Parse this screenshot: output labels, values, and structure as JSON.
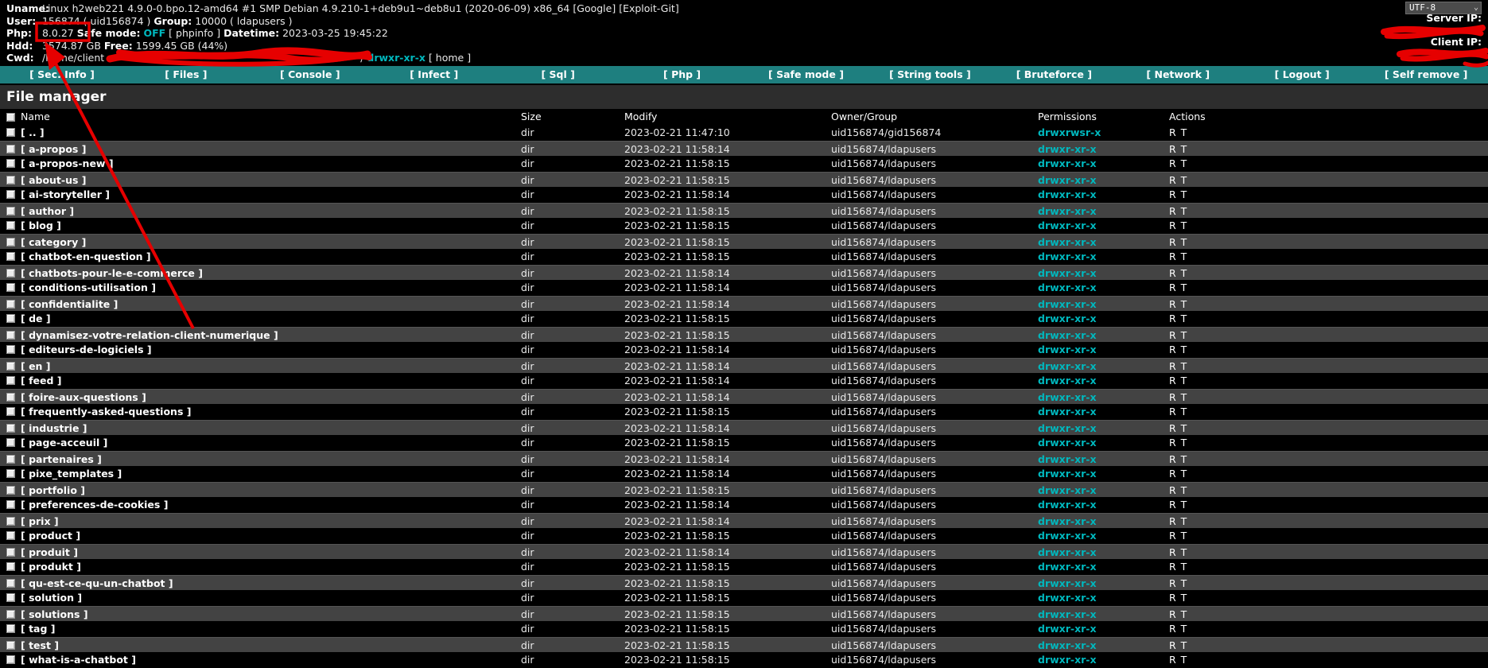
{
  "header": {
    "uname_label": "Uname:",
    "uname_value": "Linux h2web221 4.9.0-0.bpo.12-amd64 #1 SMP Debian 4.9.210-1+deb9u1~deb8u1 (2020-06-09) x86_64",
    "google_link": "[Google]",
    "exploit_link": "[Exploit-Git]",
    "user_label": "User:",
    "user_value": "156874 ( uid156874 )",
    "group_label": "Group:",
    "group_value": "10000 ( ldapusers )",
    "php_label": "Php:",
    "php_version": "8.0.27",
    "safe_mode_label": "Safe mode:",
    "safe_mode_value": "OFF",
    "phpinfo_link": "[ phpinfo ]",
    "datetime_label": "Datetime:",
    "datetime_value": "2023-03-25 19:45:22",
    "hdd_label": "Hdd:",
    "hdd_value": "3574.87 GB",
    "free_label": "Free:",
    "free_value": "1599.45 GB (44%)",
    "cwd_label": "Cwd:",
    "cwd_prefix": "/home/client",
    "cwd_suffix": "/",
    "cwd_perm": "drwxr-xr-x",
    "home_link": "[ home ]",
    "charset_value": "UTF-8",
    "server_ip_label": "Server IP:",
    "client_ip_label": "Client IP:"
  },
  "navbar": {
    "items": [
      "[ Sec. Info ]",
      "[ Files ]",
      "[ Console ]",
      "[ Infect ]",
      "[ Sql ]",
      "[ Php ]",
      "[ Safe mode ]",
      "[ String tools ]",
      "[ Bruteforce ]",
      "[ Network ]",
      "[ Logout ]",
      "[ Self remove ]"
    ]
  },
  "file_manager": {
    "title": "File manager",
    "columns": [
      "Name",
      "Size",
      "Modify",
      "Owner/Group",
      "Permissions",
      "Actions"
    ],
    "rows": [
      {
        "name": "[ .. ]",
        "size": "dir",
        "modify": "2023-02-21 11:47:10",
        "owner": "uid156874/gid156874",
        "perms": "drwxrwsr-x",
        "actions": "R T"
      },
      {
        "name": "[ a-propos ]",
        "size": "dir",
        "modify": "2023-02-21 11:58:14",
        "owner": "uid156874/ldapusers",
        "perms": "drwxr-xr-x",
        "actions": "R T"
      },
      {
        "name": "[ a-propos-new ]",
        "size": "dir",
        "modify": "2023-02-21 11:58:15",
        "owner": "uid156874/ldapusers",
        "perms": "drwxr-xr-x",
        "actions": "R T"
      },
      {
        "name": "[ about-us ]",
        "size": "dir",
        "modify": "2023-02-21 11:58:15",
        "owner": "uid156874/ldapusers",
        "perms": "drwxr-xr-x",
        "actions": "R T"
      },
      {
        "name": "[ ai-storyteller ]",
        "size": "dir",
        "modify": "2023-02-21 11:58:14",
        "owner": "uid156874/ldapusers",
        "perms": "drwxr-xr-x",
        "actions": "R T"
      },
      {
        "name": "[ author ]",
        "size": "dir",
        "modify": "2023-02-21 11:58:15",
        "owner": "uid156874/ldapusers",
        "perms": "drwxr-xr-x",
        "actions": "R T"
      },
      {
        "name": "[ blog ]",
        "size": "dir",
        "modify": "2023-02-21 11:58:15",
        "owner": "uid156874/ldapusers",
        "perms": "drwxr-xr-x",
        "actions": "R T"
      },
      {
        "name": "[ category ]",
        "size": "dir",
        "modify": "2023-02-21 11:58:15",
        "owner": "uid156874/ldapusers",
        "perms": "drwxr-xr-x",
        "actions": "R T"
      },
      {
        "name": "[ chatbot-en-question ]",
        "size": "dir",
        "modify": "2023-02-21 11:58:15",
        "owner": "uid156874/ldapusers",
        "perms": "drwxr-xr-x",
        "actions": "R T"
      },
      {
        "name": "[ chatbots-pour-le-e-commerce ]",
        "size": "dir",
        "modify": "2023-02-21 11:58:14",
        "owner": "uid156874/ldapusers",
        "perms": "drwxr-xr-x",
        "actions": "R T"
      },
      {
        "name": "[ conditions-utilisation ]",
        "size": "dir",
        "modify": "2023-02-21 11:58:14",
        "owner": "uid156874/ldapusers",
        "perms": "drwxr-xr-x",
        "actions": "R T"
      },
      {
        "name": "[ confidentialite ]",
        "size": "dir",
        "modify": "2023-02-21 11:58:14",
        "owner": "uid156874/ldapusers",
        "perms": "drwxr-xr-x",
        "actions": "R T"
      },
      {
        "name": "[ de ]",
        "size": "dir",
        "modify": "2023-02-21 11:58:15",
        "owner": "uid156874/ldapusers",
        "perms": "drwxr-xr-x",
        "actions": "R T"
      },
      {
        "name": "[ dynamisez-votre-relation-client-numerique ]",
        "size": "dir",
        "modify": "2023-02-21 11:58:15",
        "owner": "uid156874/ldapusers",
        "perms": "drwxr-xr-x",
        "actions": "R T"
      },
      {
        "name": "[ editeurs-de-logiciels ]",
        "size": "dir",
        "modify": "2023-02-21 11:58:14",
        "owner": "uid156874/ldapusers",
        "perms": "drwxr-xr-x",
        "actions": "R T"
      },
      {
        "name": "[ en ]",
        "size": "dir",
        "modify": "2023-02-21 11:58:14",
        "owner": "uid156874/ldapusers",
        "perms": "drwxr-xr-x",
        "actions": "R T"
      },
      {
        "name": "[ feed ]",
        "size": "dir",
        "modify": "2023-02-21 11:58:14",
        "owner": "uid156874/ldapusers",
        "perms": "drwxr-xr-x",
        "actions": "R T"
      },
      {
        "name": "[ foire-aux-questions ]",
        "size": "dir",
        "modify": "2023-02-21 11:58:14",
        "owner": "uid156874/ldapusers",
        "perms": "drwxr-xr-x",
        "actions": "R T"
      },
      {
        "name": "[ frequently-asked-questions ]",
        "size": "dir",
        "modify": "2023-02-21 11:58:15",
        "owner": "uid156874/ldapusers",
        "perms": "drwxr-xr-x",
        "actions": "R T"
      },
      {
        "name": "[ industrie ]",
        "size": "dir",
        "modify": "2023-02-21 11:58:14",
        "owner": "uid156874/ldapusers",
        "perms": "drwxr-xr-x",
        "actions": "R T"
      },
      {
        "name": "[ page-acceuil ]",
        "size": "dir",
        "modify": "2023-02-21 11:58:15",
        "owner": "uid156874/ldapusers",
        "perms": "drwxr-xr-x",
        "actions": "R T"
      },
      {
        "name": "[ partenaires ]",
        "size": "dir",
        "modify": "2023-02-21 11:58:14",
        "owner": "uid156874/ldapusers",
        "perms": "drwxr-xr-x",
        "actions": "R T"
      },
      {
        "name": "[ pixe_templates ]",
        "size": "dir",
        "modify": "2023-02-21 11:58:14",
        "owner": "uid156874/ldapusers",
        "perms": "drwxr-xr-x",
        "actions": "R T"
      },
      {
        "name": "[ portfolio ]",
        "size": "dir",
        "modify": "2023-02-21 11:58:15",
        "owner": "uid156874/ldapusers",
        "perms": "drwxr-xr-x",
        "actions": "R T"
      },
      {
        "name": "[ preferences-de-cookies ]",
        "size": "dir",
        "modify": "2023-02-21 11:58:14",
        "owner": "uid156874/ldapusers",
        "perms": "drwxr-xr-x",
        "actions": "R T"
      },
      {
        "name": "[ prix ]",
        "size": "dir",
        "modify": "2023-02-21 11:58:14",
        "owner": "uid156874/ldapusers",
        "perms": "drwxr-xr-x",
        "actions": "R T"
      },
      {
        "name": "[ product ]",
        "size": "dir",
        "modify": "2023-02-21 11:58:15",
        "owner": "uid156874/ldapusers",
        "perms": "drwxr-xr-x",
        "actions": "R T"
      },
      {
        "name": "[ produit ]",
        "size": "dir",
        "modify": "2023-02-21 11:58:14",
        "owner": "uid156874/ldapusers",
        "perms": "drwxr-xr-x",
        "actions": "R T"
      },
      {
        "name": "[ produkt ]",
        "size": "dir",
        "modify": "2023-02-21 11:58:15",
        "owner": "uid156874/ldapusers",
        "perms": "drwxr-xr-x",
        "actions": "R T"
      },
      {
        "name": "[ qu-est-ce-qu-un-chatbot ]",
        "size": "dir",
        "modify": "2023-02-21 11:58:15",
        "owner": "uid156874/ldapusers",
        "perms": "drwxr-xr-x",
        "actions": "R T"
      },
      {
        "name": "[ solution ]",
        "size": "dir",
        "modify": "2023-02-21 11:58:15",
        "owner": "uid156874/ldapusers",
        "perms": "drwxr-xr-x",
        "actions": "R T"
      },
      {
        "name": "[ solutions ]",
        "size": "dir",
        "modify": "2023-02-21 11:58:15",
        "owner": "uid156874/ldapusers",
        "perms": "drwxr-xr-x",
        "actions": "R T"
      },
      {
        "name": "[ tag ]",
        "size": "dir",
        "modify": "2023-02-21 11:58:15",
        "owner": "uid156874/ldapusers",
        "perms": "drwxr-xr-x",
        "actions": "R T"
      },
      {
        "name": "[ test ]",
        "size": "dir",
        "modify": "2023-02-21 11:58:15",
        "owner": "uid156874/ldapusers",
        "perms": "drwxr-xr-x",
        "actions": "R T"
      },
      {
        "name": "[ what-is-a-chatbot ]",
        "size": "dir",
        "modify": "2023-02-21 11:58:15",
        "owner": "uid156874/ldapusers",
        "perms": "drwxr-xr-x",
        "actions": "R T"
      }
    ]
  },
  "colors": {
    "navbar_teal": "#1e7f7f",
    "teal_text": "#00b7bd",
    "row_alt": "#434343",
    "title_bar": "#2d2d2d",
    "annotation_red": "#e60000"
  }
}
